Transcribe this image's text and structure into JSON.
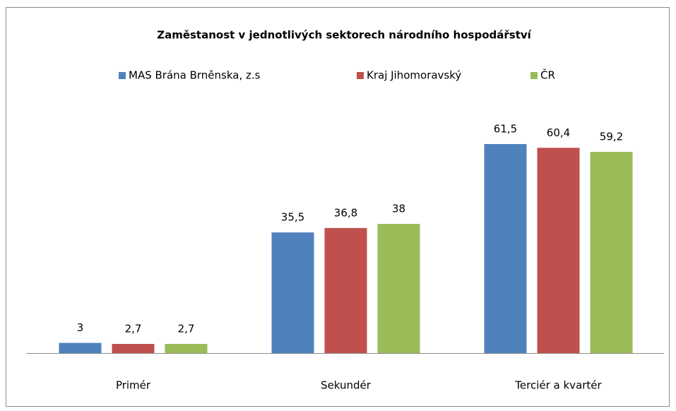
{
  "chart_data": {
    "type": "bar",
    "title": "Zaměstanost v jednotlivých  sektorech národního  hospodářství",
    "categories": [
      "Primér",
      "Sekundér",
      "Terciér a kvartér"
    ],
    "series": [
      {
        "name": "MAS Brána Brněnska, z.s",
        "color": "#4f81bd",
        "values": [
          3,
          35.5,
          61.5
        ],
        "value_labels": [
          "3",
          "35,5",
          "61,5"
        ]
      },
      {
        "name": "Kraj Jihomoravský",
        "color": "#c0504d",
        "values": [
          2.7,
          36.8,
          60.4
        ],
        "value_labels": [
          "2,7",
          "36,8",
          "60,4"
        ]
      },
      {
        "name": "ČR",
        "color": "#9bbb59",
        "values": [
          2.7,
          38,
          59.2
        ],
        "value_labels": [
          "2,7",
          "38",
          "59,2"
        ]
      }
    ],
    "legend": "top"
  }
}
